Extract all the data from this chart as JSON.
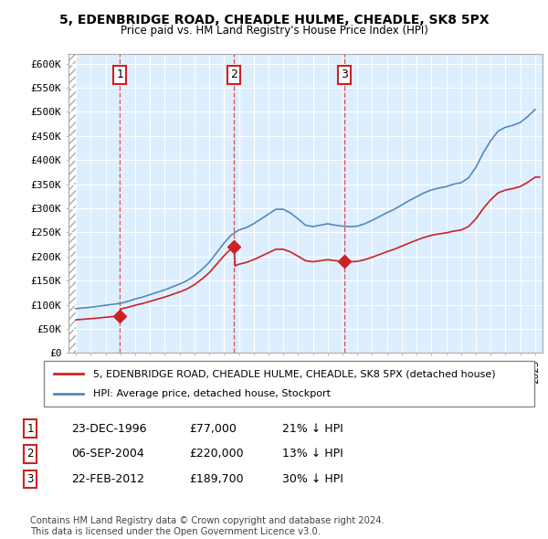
{
  "title1": "5, EDENBRIDGE ROAD, CHEADLE HULME, CHEADLE, SK8 5PX",
  "title2": "Price paid vs. HM Land Registry's House Price Index (HPI)",
  "ylabel_ticks": [
    "£0",
    "£50K",
    "£100K",
    "£150K",
    "£200K",
    "£250K",
    "£300K",
    "£350K",
    "£400K",
    "£450K",
    "£500K",
    "£550K",
    "£600K"
  ],
  "ytick_values": [
    0,
    50000,
    100000,
    150000,
    200000,
    250000,
    300000,
    350000,
    400000,
    450000,
    500000,
    550000,
    600000
  ],
  "xlim": [
    1993.5,
    2025.5
  ],
  "ylim": [
    0,
    620000
  ],
  "sale_dates": [
    1996.97,
    2004.68,
    2012.13
  ],
  "sale_prices": [
    77000,
    220000,
    189700
  ],
  "sale_labels": [
    "1",
    "2",
    "3"
  ],
  "legend_line1": "5, EDENBRIDGE ROAD, CHEADLE HULME, CHEADLE, SK8 5PX (detached house)",
  "legend_line2": "HPI: Average price, detached house, Stockport",
  "table_data": [
    [
      "1",
      "23-DEC-1996",
      "£77,000",
      "21% ↓ HPI"
    ],
    [
      "2",
      "06-SEP-2004",
      "£220,000",
      "13% ↓ HPI"
    ],
    [
      "3",
      "22-FEB-2012",
      "£189,700",
      "30% ↓ HPI"
    ]
  ],
  "footnote": "Contains HM Land Registry data © Crown copyright and database right 2024.\nThis data is licensed under the Open Government Licence v3.0.",
  "hpi_color": "#5588bb",
  "sale_color": "#cc2222",
  "vline_color": "#dd4444",
  "hatch_color": "#bbbbbb",
  "grid_color": "#cccccc",
  "bg_color": "#ddeeff",
  "hpi_years": [
    1994,
    1994.5,
    1995,
    1995.5,
    1996,
    1996.5,
    1997,
    1997.5,
    1998,
    1998.5,
    1999,
    1999.5,
    2000,
    2000.5,
    2001,
    2001.5,
    2002,
    2002.5,
    2003,
    2003.5,
    2004,
    2004.5,
    2005,
    2005.5,
    2006,
    2006.5,
    2007,
    2007.5,
    2008,
    2008.5,
    2009,
    2009.5,
    2010,
    2010.5,
    2011,
    2011.5,
    2012,
    2012.5,
    2013,
    2013.5,
    2014,
    2014.5,
    2015,
    2015.5,
    2016,
    2016.5,
    2017,
    2017.5,
    2018,
    2018.5,
    2019,
    2019.5,
    2020,
    2020.5,
    2021,
    2021.5,
    2022,
    2022.5,
    2023,
    2023.5,
    2024,
    2024.5,
    2025
  ],
  "hpi_vals": [
    92000,
    93500,
    95000,
    97000,
    99000,
    101000,
    103000,
    107000,
    112000,
    116000,
    121000,
    126000,
    131000,
    137000,
    143000,
    150000,
    160000,
    173000,
    188000,
    208000,
    228000,
    245000,
    255000,
    260000,
    268000,
    278000,
    288000,
    298000,
    298000,
    290000,
    278000,
    265000,
    262000,
    265000,
    268000,
    265000,
    263000,
    262000,
    263000,
    268000,
    275000,
    283000,
    291000,
    298000,
    307000,
    316000,
    324000,
    332000,
    338000,
    342000,
    345000,
    350000,
    353000,
    363000,
    385000,
    415000,
    440000,
    460000,
    468000,
    472000,
    478000,
    490000,
    505000
  ]
}
